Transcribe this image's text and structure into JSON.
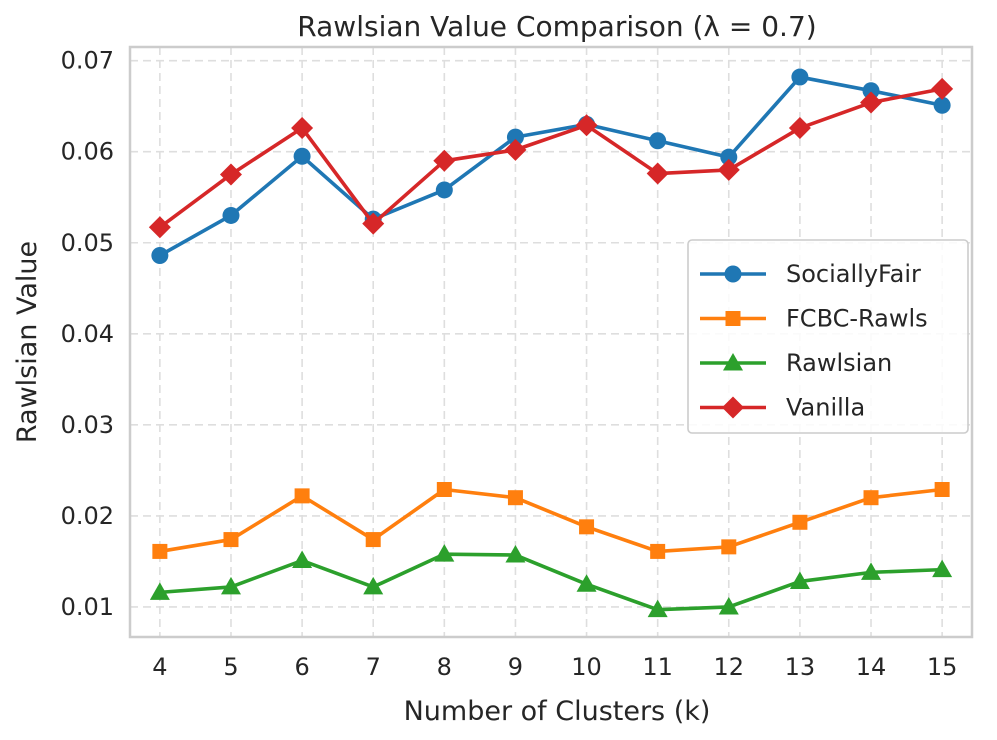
{
  "chart_data": {
    "type": "line",
    "title": "Rawlsian Value Comparison (λ = 0.7)",
    "xlabel": "Number of Clusters (k)",
    "ylabel": "Rawlsian Value",
    "x": [
      4,
      5,
      6,
      7,
      8,
      9,
      10,
      11,
      12,
      13,
      14,
      15
    ],
    "xticks": [
      "4",
      "5",
      "6",
      "7",
      "8",
      "9",
      "10",
      "11",
      "12",
      "13",
      "14",
      "15"
    ],
    "yticks": [
      0.01,
      0.02,
      0.03,
      0.04,
      0.05,
      0.06,
      0.07
    ],
    "ytick_labels": [
      "0.01",
      "0.02",
      "0.03",
      "0.04",
      "0.05",
      "0.06",
      "0.07"
    ],
    "ylim": [
      0.0067,
      0.0715
    ],
    "xlim": [
      3.58,
      15.42
    ],
    "grid": true,
    "legend_position": "center-right",
    "series": [
      {
        "name": "SociallyFair",
        "color": "#1f77b4",
        "marker": "circle",
        "values": [
          0.0486,
          0.053,
          0.0595,
          0.0526,
          0.0558,
          0.0616,
          0.063,
          0.0612,
          0.0594,
          0.0682,
          0.0667,
          0.0651
        ]
      },
      {
        "name": "FCBC-Rawls",
        "color": "#ff7f0e",
        "marker": "square",
        "values": [
          0.0161,
          0.0174,
          0.0222,
          0.0174,
          0.0229,
          0.022,
          0.0188,
          0.0161,
          0.0166,
          0.0193,
          0.022,
          0.0229
        ]
      },
      {
        "name": "Rawlsian",
        "color": "#2ca02c",
        "marker": "triangle",
        "values": [
          0.0116,
          0.0122,
          0.0151,
          0.0122,
          0.0158,
          0.0157,
          0.0125,
          0.0097,
          0.01,
          0.0128,
          0.0138,
          0.0141
        ]
      },
      {
        "name": "Vanilla",
        "color": "#d62728",
        "marker": "diamond",
        "values": [
          0.0517,
          0.0575,
          0.0626,
          0.0521,
          0.059,
          0.0602,
          0.0629,
          0.0576,
          0.058,
          0.0626,
          0.0654,
          0.0669
        ]
      }
    ]
  }
}
